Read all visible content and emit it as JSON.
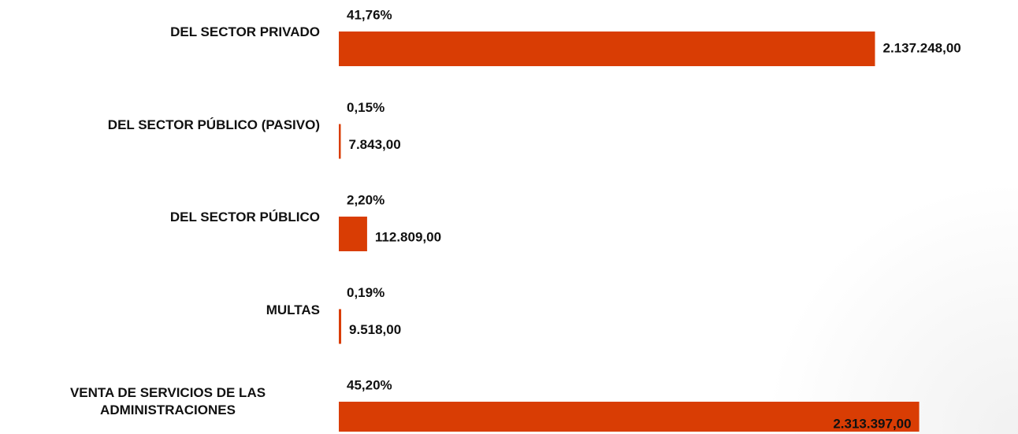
{
  "chart_data": {
    "type": "hbar",
    "categories": [
      "DEL SECTOR PRIVADO",
      "DEL SECTOR PÚBLICO (PASIVO)",
      "DEL SECTOR PÚBLICO",
      "MULTAS",
      "VENTA DE SERVICIOS DE LAS ADMINISTRACIONES"
    ],
    "values": [
      2137248,
      7843,
      112809,
      9518,
      2313397
    ],
    "value_labels": [
      "2.137.248,00",
      "7.843,00",
      "112.809,00",
      "9.518,00",
      "2.313.397,00"
    ],
    "percentage_labels": [
      "41,76%",
      "0,15%",
      "2,20%",
      "0,19%",
      "45,20%"
    ],
    "color": "#d93d04",
    "xlim": [
      0,
      2500000
    ]
  }
}
